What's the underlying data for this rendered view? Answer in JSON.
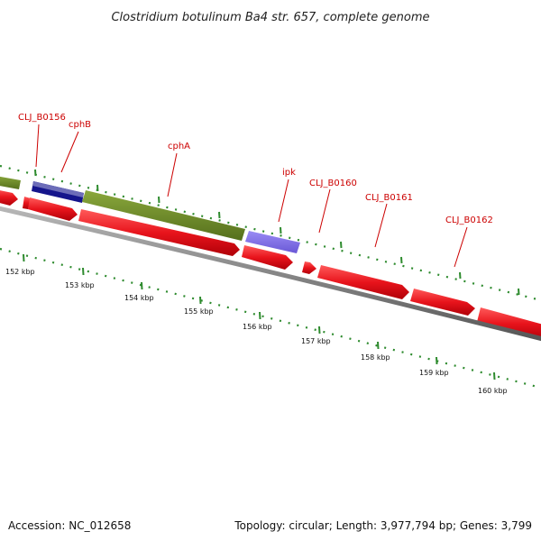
{
  "title": "Clostridium botulinum Ba4 str. 657, complete genome",
  "footer": {
    "accession": "Accession: NC_012658",
    "topology": "Topology: circular; Length: 3,977,794 bp; Genes: 3,799"
  },
  "colors": {
    "backbone": "#808080",
    "forward_cds": "#e8141c",
    "reverse_cds": "#e8141c",
    "cphB": "#3a3a9a",
    "cphA": "#6e8c2a",
    "ipk": "#7b68ee",
    "ticks": "#2e8b2e",
    "label": "#cc0000"
  },
  "gene_labels": [
    {
      "name": "CLJ_B0156"
    },
    {
      "name": "cphB"
    },
    {
      "name": "cphA"
    },
    {
      "name": "ipk"
    },
    {
      "name": "CLJ_B0160"
    },
    {
      "name": "CLJ_B0161"
    },
    {
      "name": "CLJ_B0162"
    }
  ],
  "kbp_labels": [
    "152 kbp",
    "153 kbp",
    "154 kbp",
    "155 kbp",
    "156 kbp",
    "157 kbp",
    "158 kbp",
    "159 kbp",
    "160 kbp"
  ]
}
